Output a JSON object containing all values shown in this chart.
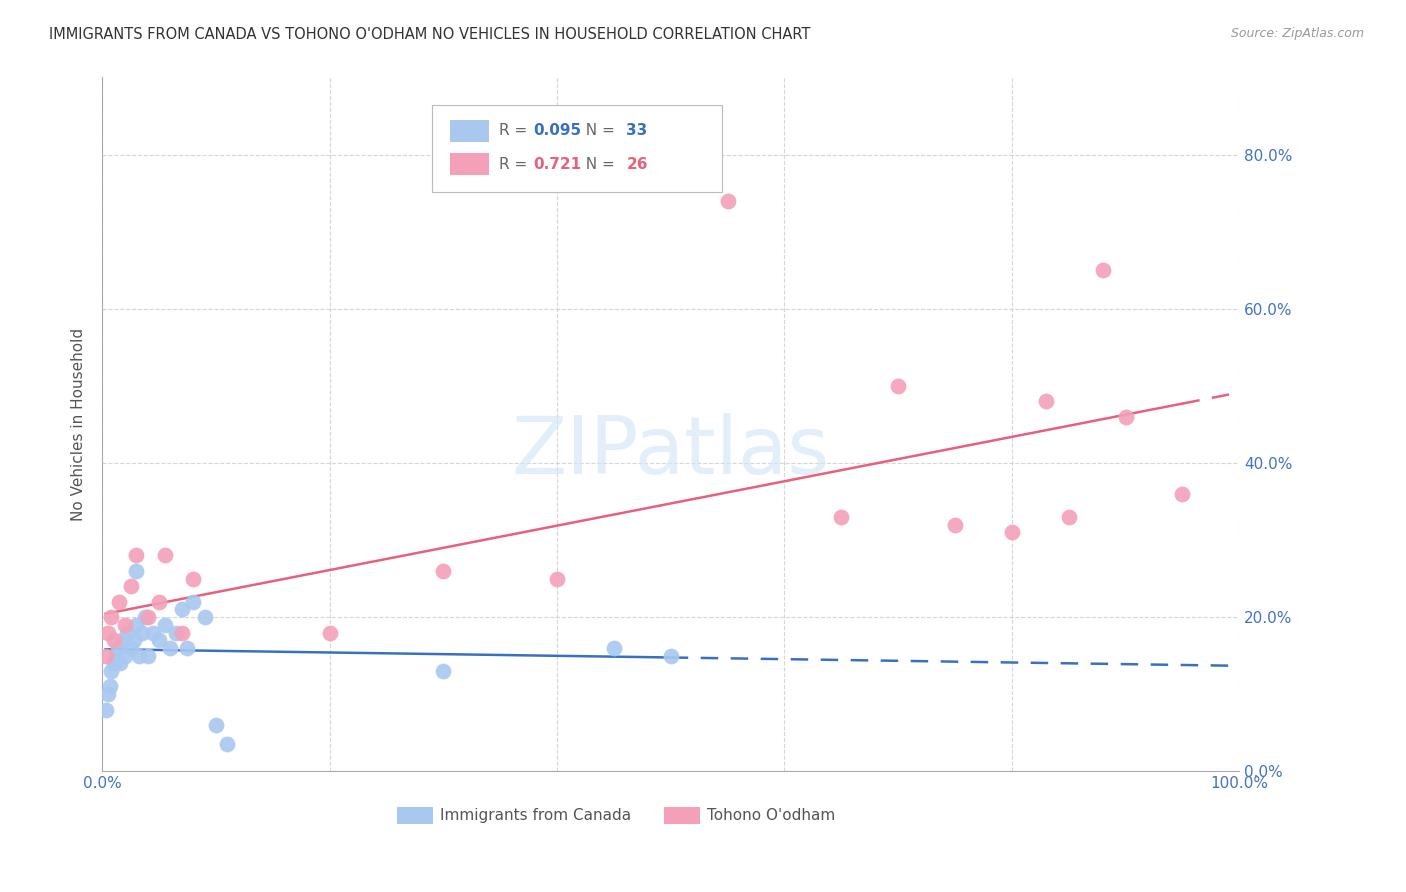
{
  "title": "IMMIGRANTS FROM CANADA VS TOHONO O'ODHAM NO VEHICLES IN HOUSEHOLD CORRELATION CHART",
  "source": "Source: ZipAtlas.com",
  "ylabel": "No Vehicles in Household",
  "watermark": "ZIPatlas",
  "legend_blue_R": "0.095",
  "legend_blue_N": "33",
  "legend_pink_R": "0.721",
  "legend_pink_N": "26",
  "blue_color": "#A8C8F0",
  "pink_color": "#F4A0B8",
  "blue_line_color": "#3A6FC4",
  "pink_line_color": "#E8607A",
  "axis_label_color": "#4472C4",
  "grid_color": "#CCCCCC",
  "title_color": "#333333",
  "blue_x": [
    0.3,
    0.5,
    0.7,
    0.8,
    1.0,
    1.2,
    1.4,
    1.6,
    1.8,
    2.0,
    2.2,
    2.5,
    2.8,
    3.0,
    3.2,
    3.5,
    3.8,
    4.0,
    4.5,
    5.0,
    5.5,
    6.0,
    6.5,
    7.0,
    7.5,
    8.0,
    9.0,
    10.0,
    11.0,
    30.0,
    45.0,
    50.0,
    3.0
  ],
  "blue_y": [
    8.0,
    10.0,
    11.0,
    13.0,
    14.0,
    15.0,
    16.0,
    14.0,
    17.0,
    15.0,
    18.0,
    16.0,
    17.0,
    19.0,
    15.0,
    18.0,
    20.0,
    15.0,
    18.0,
    17.0,
    19.0,
    16.0,
    18.0,
    21.0,
    16.0,
    22.0,
    20.0,
    6.0,
    3.5,
    13.0,
    16.0,
    15.0,
    26.0
  ],
  "pink_x": [
    0.3,
    0.5,
    0.8,
    1.0,
    1.5,
    2.0,
    2.5,
    3.0,
    4.0,
    5.0,
    5.5,
    7.0,
    8.0,
    55.0,
    65.0,
    70.0,
    75.0,
    80.0,
    83.0,
    85.0,
    88.0,
    90.0,
    95.0,
    20.0,
    30.0,
    40.0
  ],
  "pink_y": [
    15.0,
    18.0,
    20.0,
    17.0,
    22.0,
    19.0,
    24.0,
    28.0,
    20.0,
    22.0,
    28.0,
    18.0,
    25.0,
    74.0,
    33.0,
    50.0,
    32.0,
    31.0,
    48.0,
    33.0,
    65.0,
    46.0,
    36.0,
    18.0,
    26.0,
    25.0
  ],
  "xlim": [
    0,
    100
  ],
  "ylim": [
    0,
    90
  ],
  "yticks": [
    0,
    20,
    40,
    60,
    80
  ],
  "xticks_show": [
    0,
    100
  ],
  "xticks_all": [
    0,
    20,
    40,
    60,
    80,
    100
  ]
}
